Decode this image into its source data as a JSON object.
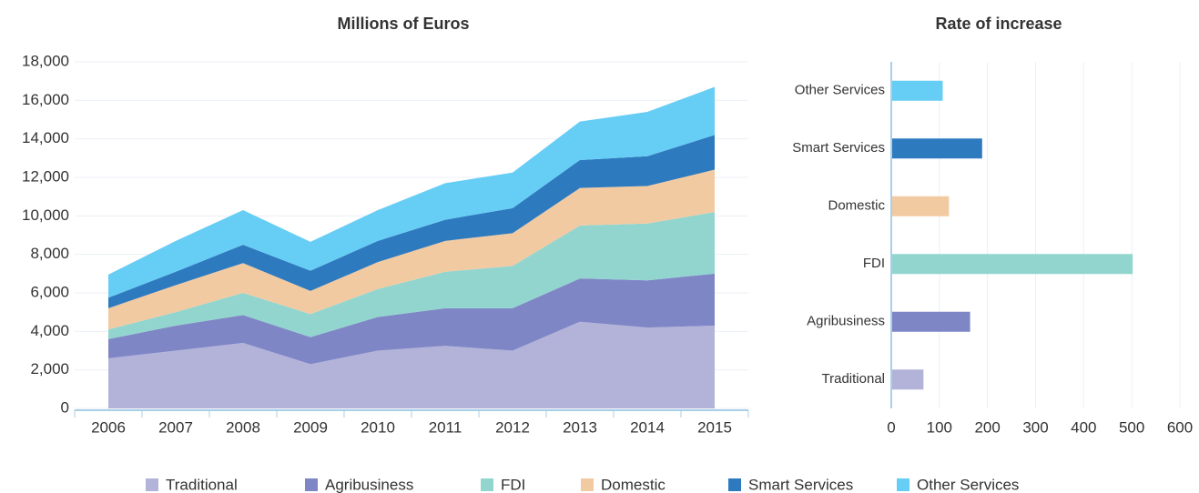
{
  "chart_data": [
    {
      "type": "stacked_area",
      "title": "Millions of Euros",
      "categories": [
        "2006",
        "2007",
        "2008",
        "2009",
        "2010",
        "2011",
        "2012",
        "2013",
        "2014",
        "2015"
      ],
      "series": [
        {
          "name": "Traditional",
          "color": "#b3b3d9",
          "values": [
            2600,
            3000,
            3400,
            2300,
            3000,
            3250,
            3000,
            4500,
            4200,
            4300
          ]
        },
        {
          "name": "Agribusiness",
          "color": "#7f86c6",
          "values": [
            1000,
            1300,
            1450,
            1400,
            1750,
            1950,
            2200,
            2250,
            2450,
            2700
          ]
        },
        {
          "name": "FDI",
          "color": "#92d5cf",
          "values": [
            500,
            700,
            1150,
            1200,
            1450,
            1900,
            2200,
            2750,
            2950,
            3200
          ]
        },
        {
          "name": "Domestic",
          "color": "#f2caa2",
          "values": [
            1100,
            1400,
            1550,
            1200,
            1400,
            1600,
            1700,
            1950,
            1950,
            2200
          ]
        },
        {
          "name": "Smart Services",
          "color": "#2e7abf",
          "values": [
            550,
            700,
            950,
            1050,
            1100,
            1100,
            1300,
            1450,
            1550,
            1800
          ]
        },
        {
          "name": "Other Services",
          "color": "#66cdf5",
          "values": [
            1200,
            1600,
            1800,
            1500,
            1600,
            1900,
            1850,
            2000,
            2300,
            2500
          ]
        }
      ],
      "ylim": [
        0,
        18000
      ],
      "yticks": [
        0,
        {
          "value": 2000,
          "label": "2,000"
        },
        {
          "value": 4000,
          "label": "4,000"
        },
        {
          "value": 6000,
          "label": "6,000"
        },
        {
          "value": 8000,
          "label": "8,000"
        },
        {
          "value": 10000,
          "label": "10,000"
        },
        {
          "value": 12000,
          "label": "12,000"
        },
        {
          "value": 14000,
          "label": "14,000"
        },
        {
          "value": 16000,
          "label": "16,000"
        },
        {
          "value": 18000,
          "label": "18,000"
        }
      ],
      "grid": true,
      "legend": "bottom"
    },
    {
      "type": "hbar",
      "title": "Rate of increase",
      "categories": [
        "Traditional",
        "Agribusiness",
        "FDI",
        "Domestic",
        "Smart Services",
        "Other Services"
      ],
      "values": [
        65,
        162,
        500,
        118,
        187,
        105
      ],
      "colors": [
        "#b3b3d9",
        "#7f86c6",
        "#92d5cf",
        "#f2caa2",
        "#2e7abf",
        "#66cdf5"
      ],
      "xlim": [
        0,
        600
      ],
      "xticks": [
        0,
        100,
        200,
        300,
        400,
        500,
        600
      ],
      "grid": true
    }
  ]
}
